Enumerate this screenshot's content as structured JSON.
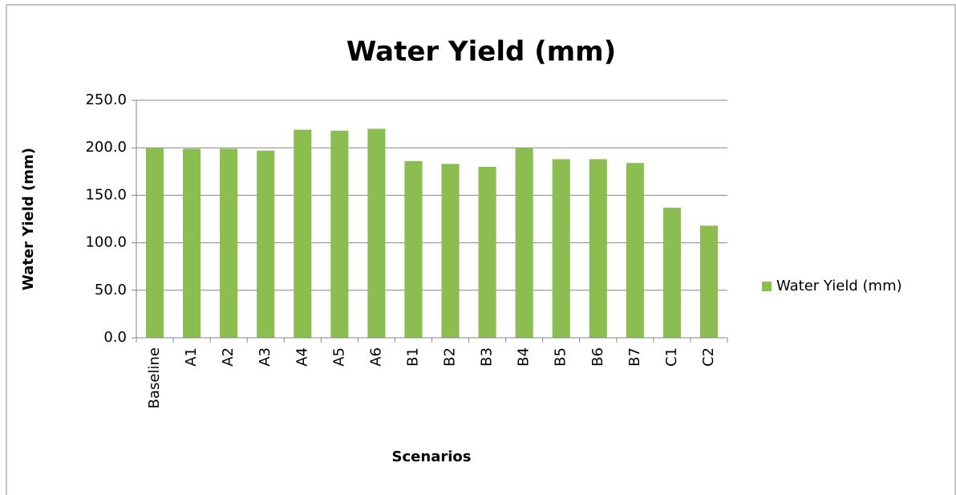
{
  "chart_data": {
    "type": "bar",
    "title": "Water Yield (mm)",
    "x_label": "Scenarios",
    "y_label": "Water Yield (mm)",
    "categories": [
      "Baseline",
      "A1",
      "A2",
      "A3",
      "A4",
      "A5",
      "A6",
      "B1",
      "B2",
      "B3",
      "B4",
      "B5",
      "B6",
      "B7",
      "C1",
      "C2"
    ],
    "series": [
      {
        "name": "Water Yield (mm)",
        "color": "#8cbd50",
        "values": [
          200,
          199,
          199,
          197,
          219,
          218,
          220,
          186,
          183,
          180,
          200,
          188,
          188,
          184,
          137,
          118
        ]
      }
    ],
    "ylim": [
      0,
      250
    ],
    "yticks": [
      {
        "value": 0,
        "label": "0.0"
      },
      {
        "value": 50,
        "label": "50.0"
      },
      {
        "value": 100,
        "label": "100.0"
      },
      {
        "value": 150,
        "label": "150.0"
      },
      {
        "value": 200,
        "label": "200.0"
      },
      {
        "value": 250,
        "label": "250.0"
      }
    ],
    "grid": true,
    "legend": "right"
  }
}
